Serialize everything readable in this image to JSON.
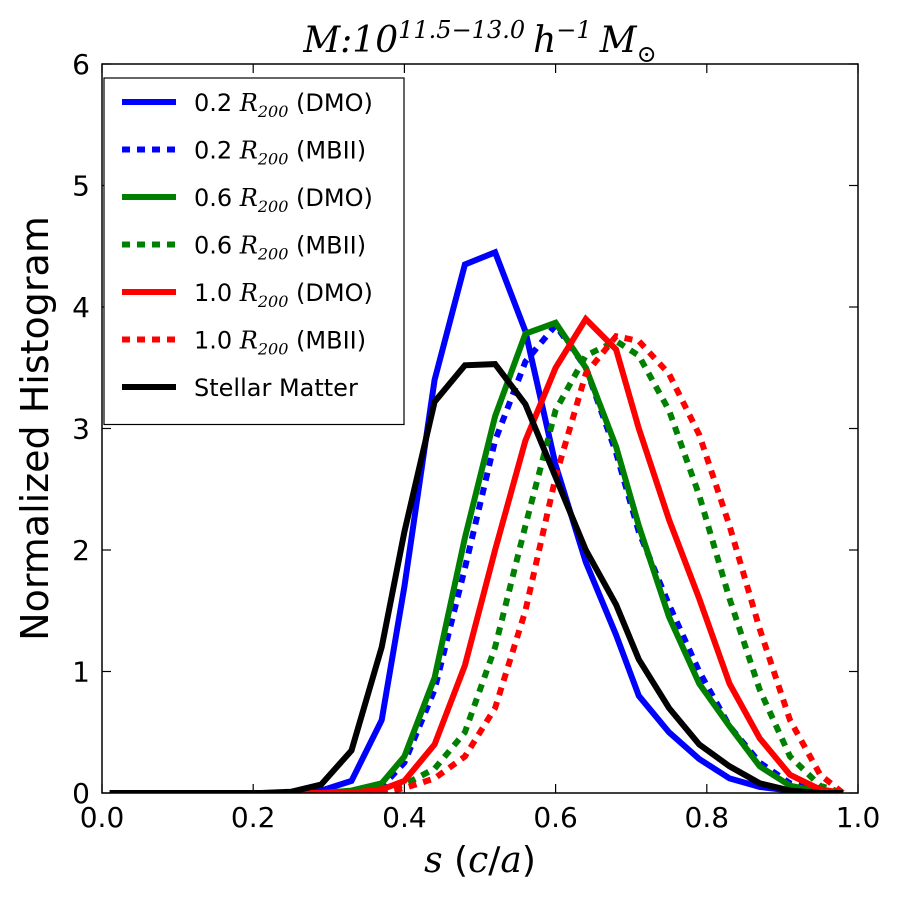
{
  "chart_data": {
    "type": "line",
    "title": {
      "base": "M:10",
      "exponent": "11.5−13.0",
      "h": "h",
      "h_exp": "−1",
      "m": "M",
      "m_sub": "⊙"
    },
    "xlabel": {
      "var": "s",
      "rest_open": " (",
      "c": "c",
      "slash": "/",
      "a": "a",
      "rest_close": ")"
    },
    "ylabel": "Normalized Histogram",
    "xlim": [
      0.0,
      1.0
    ],
    "ylim": [
      0,
      6
    ],
    "xticks": [
      0.0,
      0.2,
      0.4,
      0.6,
      0.8,
      1.0
    ],
    "xtick_labels": [
      "0.0",
      "0.2",
      "0.4",
      "0.6",
      "0.8",
      "1.0"
    ],
    "yticks": [
      0,
      1,
      2,
      3,
      4,
      5,
      6
    ],
    "ytick_labels": [
      "0",
      "1",
      "2",
      "3",
      "4",
      "5",
      "6"
    ],
    "grid": false,
    "legend_position": "top-left",
    "series": [
      {
        "name_prefix": "0.2 ",
        "name_r": "R",
        "name_sub": "200",
        "name_suffix": " (DMO)",
        "color": "#0000ff",
        "style": "solid",
        "x": [
          0.01,
          0.05,
          0.09,
          0.13,
          0.17,
          0.21,
          0.25,
          0.29,
          0.33,
          0.37,
          0.4,
          0.44,
          0.48,
          0.52,
          0.56,
          0.6,
          0.64,
          0.68,
          0.71,
          0.75,
          0.79,
          0.83,
          0.87,
          0.91,
          0.95,
          0.98
        ],
        "y": [
          0,
          0,
          0,
          0,
          0,
          0,
          0,
          0.02,
          0.1,
          0.6,
          1.7,
          3.4,
          4.35,
          4.45,
          3.8,
          2.7,
          1.9,
          1.3,
          0.8,
          0.5,
          0.28,
          0.12,
          0.05,
          0.02,
          0.01,
          0
        ]
      },
      {
        "name_prefix": "0.2 ",
        "name_r": "R",
        "name_sub": "200",
        "name_suffix": " (MBII)",
        "color": "#0000ff",
        "style": "dotted",
        "x": [
          0.01,
          0.05,
          0.09,
          0.13,
          0.17,
          0.21,
          0.25,
          0.29,
          0.33,
          0.37,
          0.4,
          0.44,
          0.48,
          0.52,
          0.56,
          0.6,
          0.64,
          0.68,
          0.71,
          0.75,
          0.79,
          0.83,
          0.87,
          0.91,
          0.95,
          0.98
        ],
        "y": [
          0,
          0,
          0,
          0,
          0,
          0,
          0,
          0,
          0.01,
          0.05,
          0.25,
          0.85,
          1.85,
          2.9,
          3.55,
          3.85,
          3.5,
          2.8,
          2.15,
          1.55,
          1.0,
          0.55,
          0.25,
          0.08,
          0.02,
          0
        ]
      },
      {
        "name_prefix": "0.6 ",
        "name_r": "R",
        "name_sub": "200",
        "name_suffix": " (DMO)",
        "color": "#008000",
        "style": "solid",
        "x": [
          0.01,
          0.05,
          0.09,
          0.13,
          0.17,
          0.21,
          0.25,
          0.29,
          0.33,
          0.37,
          0.4,
          0.44,
          0.48,
          0.52,
          0.56,
          0.6,
          0.64,
          0.68,
          0.71,
          0.75,
          0.79,
          0.83,
          0.87,
          0.91,
          0.95,
          0.98
        ],
        "y": [
          0,
          0,
          0,
          0,
          0,
          0,
          0,
          0,
          0.02,
          0.08,
          0.3,
          0.95,
          2.1,
          3.1,
          3.78,
          3.87,
          3.5,
          2.85,
          2.2,
          1.45,
          0.9,
          0.55,
          0.22,
          0.06,
          0.01,
          0
        ]
      },
      {
        "name_prefix": "0.6 ",
        "name_r": "R",
        "name_sub": "200",
        "name_suffix": " (MBII)",
        "color": "#008000",
        "style": "dotted",
        "x": [
          0.01,
          0.05,
          0.09,
          0.13,
          0.17,
          0.21,
          0.25,
          0.29,
          0.33,
          0.37,
          0.4,
          0.44,
          0.48,
          0.52,
          0.56,
          0.6,
          0.64,
          0.68,
          0.71,
          0.75,
          0.79,
          0.83,
          0.87,
          0.91,
          0.95,
          0.98
        ],
        "y": [
          0,
          0,
          0,
          0,
          0,
          0,
          0,
          0,
          0,
          0.02,
          0.07,
          0.2,
          0.5,
          1.2,
          2.2,
          3.15,
          3.6,
          3.72,
          3.6,
          3.15,
          2.45,
          1.6,
          0.85,
          0.3,
          0.06,
          0
        ]
      },
      {
        "name_prefix": "1.0 ",
        "name_r": "R",
        "name_sub": "200",
        "name_suffix": " (DMO)",
        "color": "#ff0000",
        "style": "solid",
        "x": [
          0.01,
          0.05,
          0.09,
          0.13,
          0.17,
          0.21,
          0.25,
          0.29,
          0.33,
          0.37,
          0.4,
          0.44,
          0.48,
          0.52,
          0.56,
          0.6,
          0.64,
          0.68,
          0.71,
          0.75,
          0.79,
          0.83,
          0.87,
          0.91,
          0.95,
          0.98
        ],
        "y": [
          0,
          0,
          0,
          0,
          0,
          0,
          0,
          0,
          0,
          0.03,
          0.1,
          0.4,
          1.05,
          2.0,
          2.9,
          3.5,
          3.9,
          3.65,
          3.0,
          2.25,
          1.6,
          0.9,
          0.45,
          0.15,
          0.03,
          0
        ]
      },
      {
        "name_prefix": "1.0 ",
        "name_r": "R",
        "name_sub": "200",
        "name_suffix": " (MBII)",
        "color": "#ff0000",
        "style": "dotted",
        "x": [
          0.01,
          0.05,
          0.09,
          0.13,
          0.17,
          0.21,
          0.25,
          0.29,
          0.33,
          0.37,
          0.4,
          0.44,
          0.48,
          0.52,
          0.56,
          0.6,
          0.64,
          0.68,
          0.71,
          0.75,
          0.79,
          0.83,
          0.87,
          0.91,
          0.95,
          0.98
        ],
        "y": [
          0,
          0,
          0,
          0,
          0,
          0,
          0,
          0,
          0,
          0,
          0.04,
          0.12,
          0.3,
          0.7,
          1.5,
          2.6,
          3.45,
          3.76,
          3.72,
          3.45,
          2.95,
          2.2,
          1.35,
          0.6,
          0.15,
          0
        ]
      },
      {
        "name_prefix": "Stellar Matter",
        "name_r": "",
        "name_sub": "",
        "name_suffix": "",
        "color": "#000000",
        "style": "solid",
        "x": [
          0.01,
          0.05,
          0.09,
          0.13,
          0.17,
          0.21,
          0.25,
          0.29,
          0.33,
          0.37,
          0.4,
          0.44,
          0.48,
          0.52,
          0.56,
          0.6,
          0.64,
          0.68,
          0.71,
          0.75,
          0.79,
          0.83,
          0.87,
          0.91,
          0.95,
          0.98
        ],
        "y": [
          0,
          0,
          0,
          0,
          0,
          0,
          0.01,
          0.07,
          0.35,
          1.2,
          2.15,
          3.22,
          3.52,
          3.53,
          3.2,
          2.6,
          2.0,
          1.55,
          1.1,
          0.7,
          0.4,
          0.22,
          0.08,
          0.02,
          0,
          0
        ]
      }
    ]
  }
}
